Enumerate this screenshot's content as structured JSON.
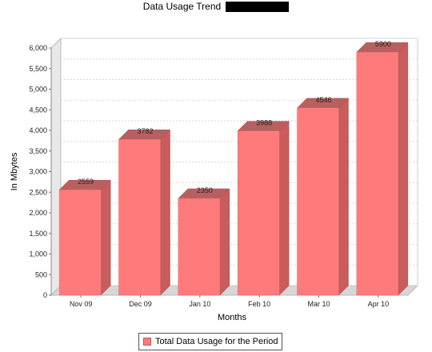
{
  "title": "Data Usage Trend",
  "chart_data": {
    "type": "bar",
    "title": "Data Usage Trend",
    "xlabel": "Months",
    "ylabel": "In Mbytes",
    "categories": [
      "Nov 09",
      "Dec 09",
      "Jan 10",
      "Feb 10",
      "Mar 10",
      "Apr 10"
    ],
    "series": [
      {
        "name": "Total Data Usage for the Period",
        "values": [
          2559,
          3782,
          2350,
          3988,
          4546,
          5900
        ]
      }
    ],
    "ylim": [
      0,
      6000
    ],
    "yticks": [
      "0",
      "500",
      "1,000",
      "1,500",
      "2,000",
      "2,500",
      "3,000",
      "3,500",
      "4,000",
      "4,500",
      "5,000",
      "5,500",
      "6,000"
    ],
    "grid": true,
    "legend": "bottom-center",
    "bar_color": "#ff7b7b",
    "bar_side_color": "#c95c5c",
    "bar_top_color": "#b86060"
  }
}
